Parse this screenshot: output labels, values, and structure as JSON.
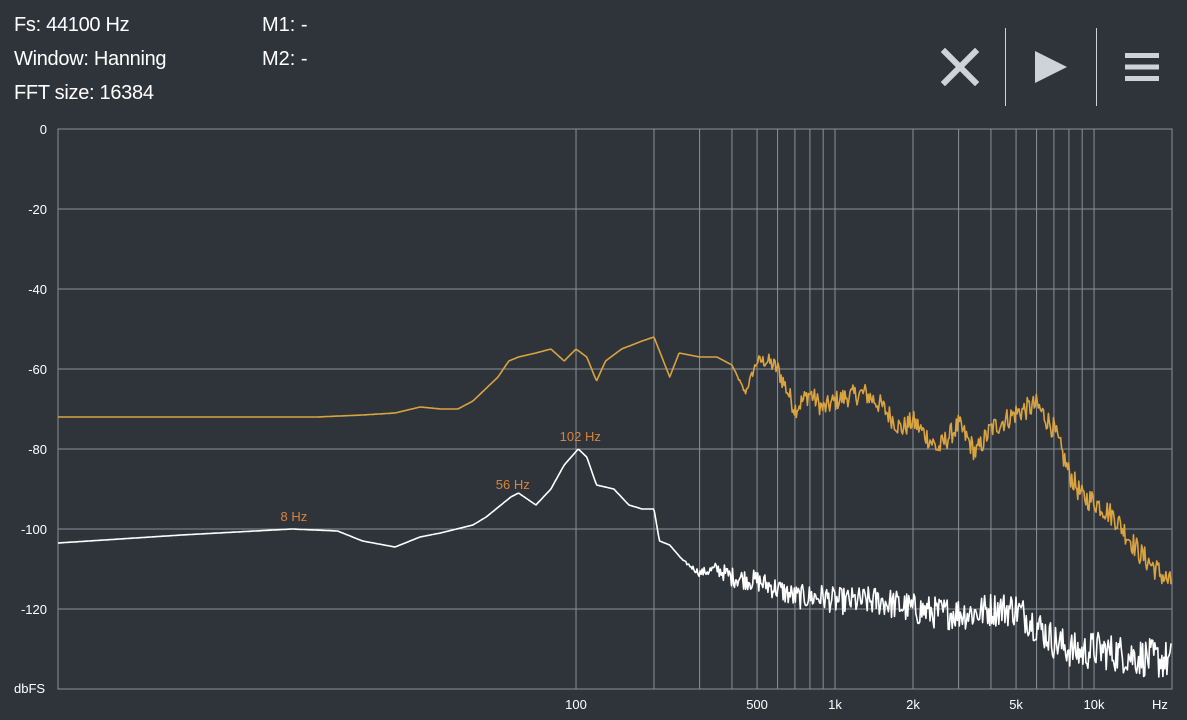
{
  "info": {
    "fs": "Fs: 44100 Hz",
    "window": "Window: Hanning",
    "fft_size": "FFT size: 16384"
  },
  "markers": {
    "m1": "M1: -",
    "m2": "M2: -"
  },
  "toolbar": {
    "close_icon": "close-x-icon",
    "play_icon": "play-icon",
    "menu_icon": "hamburger-menu-icon"
  },
  "colors": {
    "background": "#2f343b",
    "grid": "#8b9096",
    "spectrum1": "#d9a340",
    "spectrum2": "#ffffff",
    "peak_label": "#d9823d"
  },
  "chart_data": {
    "type": "line",
    "title": "",
    "xlabel": "Hz",
    "ylabel": "dbFS",
    "xscale": "log",
    "xlim": [
      1,
      20000
    ],
    "ylim": [
      -140,
      0
    ],
    "grid": true,
    "y_ticks": [
      {
        "value": 0,
        "label": "0"
      },
      {
        "value": -20,
        "label": "-20"
      },
      {
        "value": -40,
        "label": "-40"
      },
      {
        "value": -60,
        "label": "-60"
      },
      {
        "value": -80,
        "label": "-80"
      },
      {
        "value": -100,
        "label": "-100"
      },
      {
        "value": -120,
        "label": "-120"
      }
    ],
    "x_tick_labels": [
      {
        "value": 100,
        "label": "100"
      },
      {
        "value": 500,
        "label": "500"
      },
      {
        "value": 1000,
        "label": "1k"
      },
      {
        "value": 2000,
        "label": "2k"
      },
      {
        "value": 5000,
        "label": "5k"
      },
      {
        "value": 10000,
        "label": "10k"
      }
    ],
    "x_gridlines": [
      100,
      200,
      300,
      400,
      500,
      600,
      700,
      800,
      900,
      1000,
      2000,
      3000,
      4000,
      5000,
      6000,
      7000,
      8000,
      9000,
      10000,
      20000
    ],
    "peak_labels": [
      {
        "x": 8,
        "y": -100,
        "label": "8 Hz"
      },
      {
        "x": 56,
        "y": -92,
        "label": "56 Hz"
      },
      {
        "x": 102,
        "y": -80,
        "label": "102 Hz"
      }
    ],
    "series": [
      {
        "color": "#d9a340",
        "noise": 0,
        "x": [
          1,
          2,
          5,
          10,
          15,
          20,
          25,
          30,
          35,
          40,
          50,
          55,
          60,
          70,
          80,
          90,
          100,
          110,
          120,
          130,
          150,
          180,
          200,
          230,
          250,
          300,
          350,
          400,
          450,
          500,
          550,
          600,
          650,
          700,
          800,
          900,
          1000,
          1100,
          1300,
          1500,
          1800,
          2000,
          2500,
          3000,
          3500,
          4000,
          5000,
          6000,
          7000,
          8000,
          9000,
          10000,
          12000,
          15000,
          20000
        ],
        "y": [
          -72,
          -72,
          -72,
          -72,
          -71.5,
          -71,
          -69.5,
          -70,
          -70,
          -68,
          -62,
          -58,
          -57,
          -56,
          -55,
          -58,
          -55,
          -57,
          -63,
          -58,
          -55,
          -53,
          -52,
          -62,
          -56,
          -57,
          -57,
          -59,
          -66,
          -58,
          -58,
          -60,
          -65,
          -70,
          -66,
          -70,
          -68,
          -67,
          -66,
          -69,
          -75,
          -73,
          -80,
          -74,
          -81,
          -75,
          -71,
          -69,
          -75,
          -86,
          -92,
          -93,
          -97,
          -106,
          -114
        ],
        "noise_band": [
          [
            1,
            0
          ],
          [
            400,
            0
          ],
          [
            600,
            2.5
          ],
          [
            20000,
            3
          ]
        ]
      },
      {
        "color": "#ffffff",
        "noise": 0,
        "x": [
          1,
          3,
          8,
          12,
          15,
          20,
          25,
          30,
          40,
          45,
          56,
          60,
          70,
          80,
          90,
          102,
          110,
          120,
          140,
          160,
          180,
          200,
          210,
          230,
          260,
          300,
          350,
          400,
          500,
          600,
          700,
          900,
          1000,
          1300,
          1500,
          2000,
          2500,
          3000,
          3500,
          4000,
          5000,
          6000,
          7000,
          8000,
          9000,
          10000,
          12000,
          15000,
          20000
        ],
        "y": [
          -103.5,
          -101.5,
          -100,
          -100.5,
          -103,
          -104.5,
          -102,
          -101,
          -99,
          -97,
          -92,
          -91,
          -94,
          -90,
          -84,
          -80,
          -82,
          -89,
          -90,
          -94,
          -95,
          -95,
          -103,
          -104,
          -108,
          -111,
          -110,
          -112,
          -113,
          -115,
          -117,
          -117,
          -118,
          -118,
          -118,
          -120,
          -121,
          -121,
          -121,
          -120,
          -120,
          -124,
          -128,
          -130,
          -131,
          -130,
          -131,
          -132,
          -133
        ],
        "noise_band": [
          [
            1,
            0
          ],
          [
            250,
            0
          ],
          [
            400,
            2.5
          ],
          [
            2000,
            4
          ],
          [
            20000,
            5
          ]
        ]
      }
    ]
  }
}
